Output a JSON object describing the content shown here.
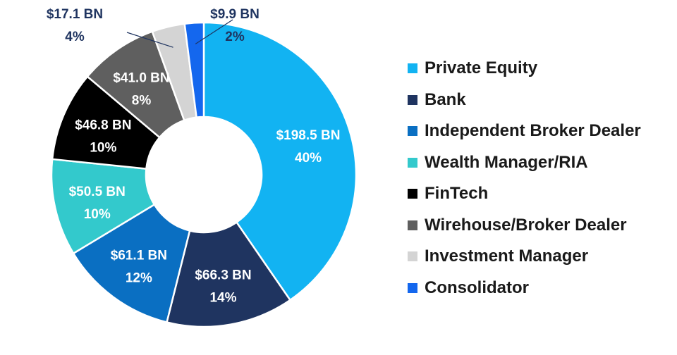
{
  "chart_data": {
    "type": "pie",
    "donut": true,
    "legend_position": "right",
    "slices": [
      {
        "name": "Private Equity",
        "amount": "$198.5 BN",
        "percent": "40%",
        "value": 198.5,
        "color": "#12b3f2",
        "text_color": "#ffffff"
      },
      {
        "name": "Bank",
        "amount": "$66.3 BN",
        "percent": "14%",
        "value": 66.3,
        "color": "#1f3460",
        "text_color": "#ffffff"
      },
      {
        "name": "Independent Broker Dealer",
        "amount": "$61.1 BN",
        "percent": "12%",
        "value": 61.1,
        "color": "#0a6fc2",
        "text_color": "#ffffff"
      },
      {
        "name": "Wealth Manager/RIA",
        "amount": "$50.5 BN",
        "percent": "10%",
        "value": 50.5,
        "color": "#33c9cc",
        "text_color": "#ffffff"
      },
      {
        "name": "FinTech",
        "amount": "$46.8 BN",
        "percent": "10%",
        "value": 46.8,
        "color": "#000000",
        "text_color": "#ffffff"
      },
      {
        "name": "Wirehouse/Broker Dealer",
        "amount": "$41.0 BN",
        "percent": "8%",
        "value": 41.0,
        "color": "#5f5f5f",
        "text_color": "#ffffff"
      },
      {
        "name": "Investment Manager",
        "amount": "$17.1 BN",
        "percent": "4%",
        "value": 17.1,
        "color": "#d4d4d4",
        "text_color": "#1f3460"
      },
      {
        "name": "Consolidator",
        "amount": "$9.9 BN",
        "percent": "2%",
        "value": 9.9,
        "color": "#1467ee",
        "text_color": "#1f3460"
      }
    ]
  }
}
